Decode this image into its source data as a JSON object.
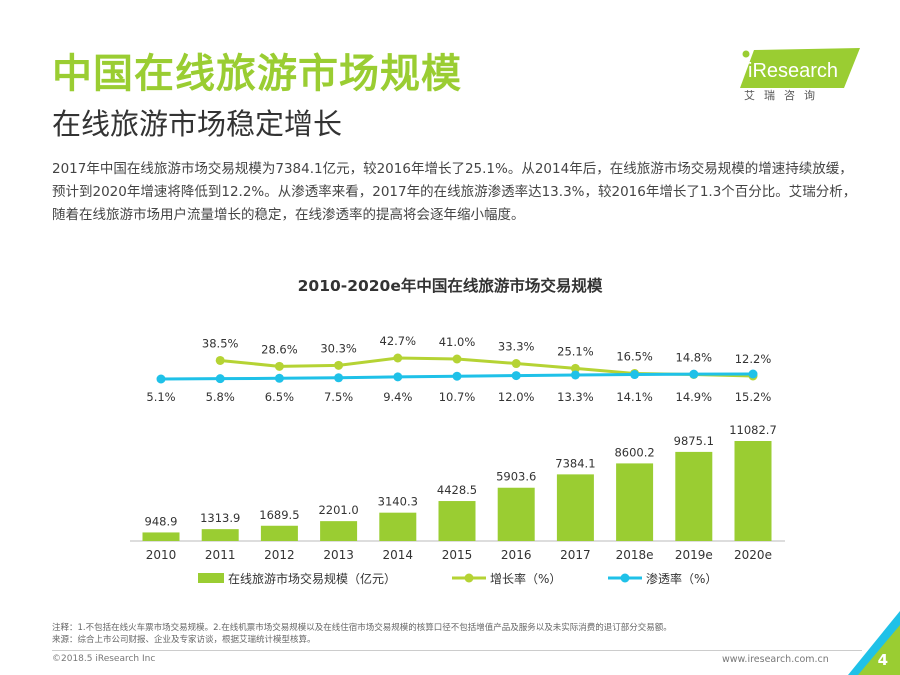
{
  "header": {
    "title": "中国在线旅游市场规模",
    "subtitle": "在线旅游市场稳定增长",
    "description": "2017年中国在线旅游市场交易规模为7384.1亿元，较2016年增长了25.1%。从2014年后，在线旅游市场交易规模的增速持续放缓，预计到2020年增速将降低到12.2%。从渗透率来看，2017年的在线旅游渗透率达13.3%，较2016年增长了1.3个百分比。艾瑞分析，随着在线旅游市场用户流量增长的稳定，在线渗透率的提高将会逐年缩小幅度。"
  },
  "logo": {
    "brand": "iResearch",
    "tagline": "艾瑞咨询"
  },
  "colors": {
    "bar": "#9acd32",
    "growth": "#b5d334",
    "penetration": "#1fc1e8",
    "accent": "#9acd32"
  },
  "chart_data": {
    "type": "bar+line",
    "title": "2010-2020e年中国在线旅游市场交易规模",
    "categories": [
      "2010",
      "2011",
      "2012",
      "2013",
      "2014",
      "2015",
      "2016",
      "2017",
      "2018e",
      "2019e",
      "2020e"
    ],
    "series": [
      {
        "name": "在线旅游市场交易规模（亿元）",
        "type": "bar",
        "values": [
          948.9,
          1313.9,
          1689.5,
          2201.0,
          3140.3,
          4428.5,
          5903.6,
          7384.1,
          8600.2,
          9875.1,
          11082.7
        ],
        "labels": [
          "948.9",
          "1313.9",
          "1689.5",
          "2201.0",
          "3140.3",
          "4428.5",
          "5903.6",
          "7384.1",
          "8600.2",
          "9875.1",
          "11082.7"
        ]
      },
      {
        "name": "增长率（%）",
        "type": "line",
        "values": [
          null,
          38.5,
          28.6,
          30.3,
          42.7,
          41.0,
          33.3,
          25.1,
          16.5,
          14.8,
          12.2
        ],
        "labels": [
          "",
          "38.5%",
          "28.6%",
          "30.3%",
          "42.7%",
          "41.0%",
          "33.3%",
          "25.1%",
          "16.5%",
          "14.8%",
          "12.2%"
        ]
      },
      {
        "name": "渗透率（%）",
        "type": "line",
        "values": [
          5.1,
          5.8,
          6.5,
          7.5,
          9.4,
          10.7,
          12.0,
          13.3,
          14.1,
          14.9,
          15.2
        ],
        "labels": [
          "5.1%",
          "5.8%",
          "6.5%",
          "7.5%",
          "9.4%",
          "10.7%",
          "12.0%",
          "13.3%",
          "14.1%",
          "14.9%",
          "15.2%"
        ]
      }
    ],
    "legend": [
      "在线旅游市场交易规模（亿元）",
      "增长率（%）",
      "渗透率（%）"
    ],
    "legend_position": "bottom"
  },
  "footer": {
    "note": "注释：1.不包括在线火车票市场交易规模。2.在线机票市场交易规模以及在线住宿市场交易规模的核算口径不包括增值产品及服务以及未实际消费的退订部分交易额。",
    "source": "来源：综合上市公司财报、企业及专家访谈，根据艾瑞统计模型核算。",
    "copyright": "©2018.5 iResearch Inc",
    "website": "www.iresearch.com.cn",
    "page": "4"
  }
}
